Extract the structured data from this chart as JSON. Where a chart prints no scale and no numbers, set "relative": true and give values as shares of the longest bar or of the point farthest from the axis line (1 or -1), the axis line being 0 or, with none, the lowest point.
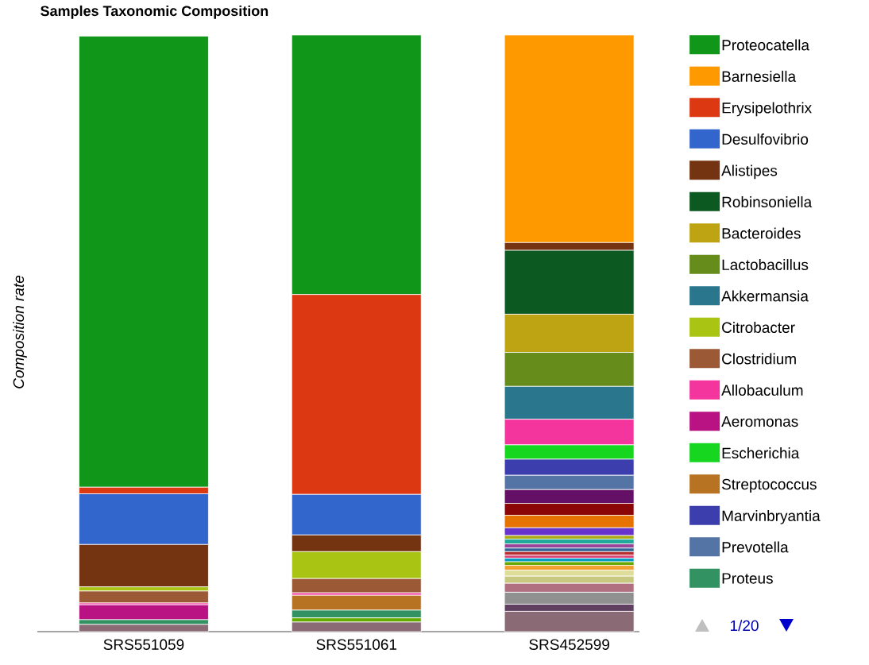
{
  "chart_data": {
    "type": "bar",
    "title": "Samples Taxonomic Composition",
    "ylabel": "Composition rate",
    "relative": true,
    "stacked": true,
    "legend": "right",
    "annotations": [
      "1/20"
    ],
    "categories": [
      "SRS551059",
      "SRS551061",
      "SRS452599"
    ],
    "series": [
      {
        "color": "#8a6a74",
        "values": [
          0.012,
          0.016,
          0.034
        ]
      },
      {
        "color": "#604060",
        "values": [
          0,
          0,
          0.012
        ]
      },
      {
        "color": "#909090",
        "values": [
          0,
          0,
          0.02
        ]
      },
      {
        "color": "#b07080",
        "values": [
          0,
          0,
          0.015
        ]
      },
      {
        "color": "#c8c880",
        "values": [
          0,
          0,
          0.012
        ]
      },
      {
        "color": "#dddd99",
        "values": [
          0,
          0,
          0.01
        ]
      },
      {
        "color": "#f0a030",
        "values": [
          0,
          0,
          0.008
        ]
      },
      {
        "color": "#66aa00",
        "values": [
          0,
          0.007,
          0.006
        ]
      },
      {
        "color": "#0099c6",
        "values": [
          0,
          0,
          0.006
        ]
      },
      {
        "color": "#dd4477",
        "values": [
          0,
          0,
          0.005
        ]
      },
      {
        "color": "#b82e2e",
        "values": [
          0,
          0,
          0.006
        ]
      },
      {
        "color": "#316395",
        "values": [
          0,
          0,
          0.006
        ]
      },
      {
        "color": "#994499",
        "values": [
          0,
          0,
          0.007
        ]
      },
      {
        "color": "#22aa99",
        "values": [
          0,
          0,
          0.008
        ]
      },
      {
        "color": "#aaaa11",
        "values": [
          0,
          0,
          0.006
        ]
      },
      {
        "color": "#6633cc",
        "values": [
          0,
          0,
          0.013
        ]
      },
      {
        "color": "#e67300",
        "values": [
          0,
          0,
          0.021
        ]
      },
      {
        "color": "#8b0707",
        "values": [
          0,
          0,
          0.02
        ]
      },
      {
        "color": "#651067",
        "values": [
          0,
          0,
          0.023
        ]
      },
      {
        "name": "Proteus",
        "color": "#329262",
        "values": [
          0.008,
          0.013,
          0
        ]
      },
      {
        "name": "Prevotella",
        "color": "#5574a6",
        "values": [
          0,
          0,
          0.024
        ]
      },
      {
        "name": "Marvinbryantia",
        "color": "#3b3eac",
        "values": [
          0,
          0,
          0.027
        ]
      },
      {
        "name": "Streptococcus",
        "color": "#b77322",
        "values": [
          0,
          0.025,
          0
        ]
      },
      {
        "name": "Escherichia",
        "color": "#16d620",
        "values": [
          null,
          0,
          0.024
        ]
      },
      {
        "name": "Aeromonas",
        "color": "#b91383",
        "values": [
          0.025,
          0,
          0
        ]
      },
      {
        "name": "Allobaculum",
        "color": "#f4359e",
        "values": [
          0.003,
          0.004,
          0.043
        ]
      },
      {
        "name": "Clostridium",
        "color": "#9c5935",
        "values": [
          0.02,
          0.024,
          0
        ]
      },
      {
        "name": "Citrobacter",
        "color": "#a9c413",
        "values": [
          0.007,
          0.045,
          0
        ]
      },
      {
        "name": "Akkermansia",
        "color": "#2a778d",
        "values": [
          0,
          0,
          0.055
        ]
      },
      {
        "name": "Lactobacillus",
        "color": "#668d1c",
        "values": [
          0,
          0,
          0.057
        ]
      },
      {
        "name": "Bacteroides",
        "color": "#bea413",
        "values": [
          0,
          0,
          0.064
        ]
      },
      {
        "name": "Robinsoniella",
        "color": "#0c5922",
        "values": [
          0,
          0,
          0.107
        ]
      },
      {
        "name": "Alistipes",
        "color": "#743411",
        "values": [
          0.071,
          0.028,
          0.013
        ]
      },
      {
        "name": "Desulfovibrio",
        "color": "#3366cc",
        "values": [
          0.085,
          0.068,
          0
        ]
      },
      {
        "name": "Erysipelothrix",
        "color": "#dc3912",
        "values": [
          0.011,
          0.335,
          0
        ]
      },
      {
        "name": "Barnesiella",
        "color": "#ff9900",
        "values": [
          0,
          0,
          0.348
        ]
      },
      {
        "name": "Proteocatella",
        "color": "#109618",
        "values": [
          0.756,
          0.435,
          0
        ]
      }
    ]
  }
}
